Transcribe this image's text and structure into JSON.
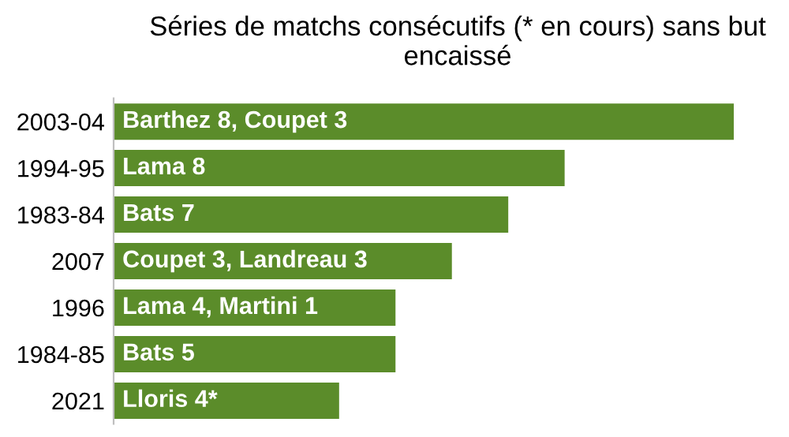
{
  "chart_data": {
    "type": "bar",
    "orientation": "horizontal",
    "title": "Séries de matchs consécutifs (* en cours) sans but encaissé",
    "categories": [
      "2003-04",
      "1994-95",
      "1983-84",
      "2007",
      "1996",
      "1984-85",
      "2021"
    ],
    "values": [
      11,
      8,
      7,
      6,
      5,
      5,
      4
    ],
    "value_labels": [
      "Barthez 8, Coupet 3",
      "Lama 8",
      "Bats 7",
      "Coupet 3, Landreau 3",
      "Lama 4, Martini 1",
      "Bats 5",
      "Lloris 4*"
    ],
    "color": "#5b8c2a",
    "grid": false,
    "legend": false
  }
}
